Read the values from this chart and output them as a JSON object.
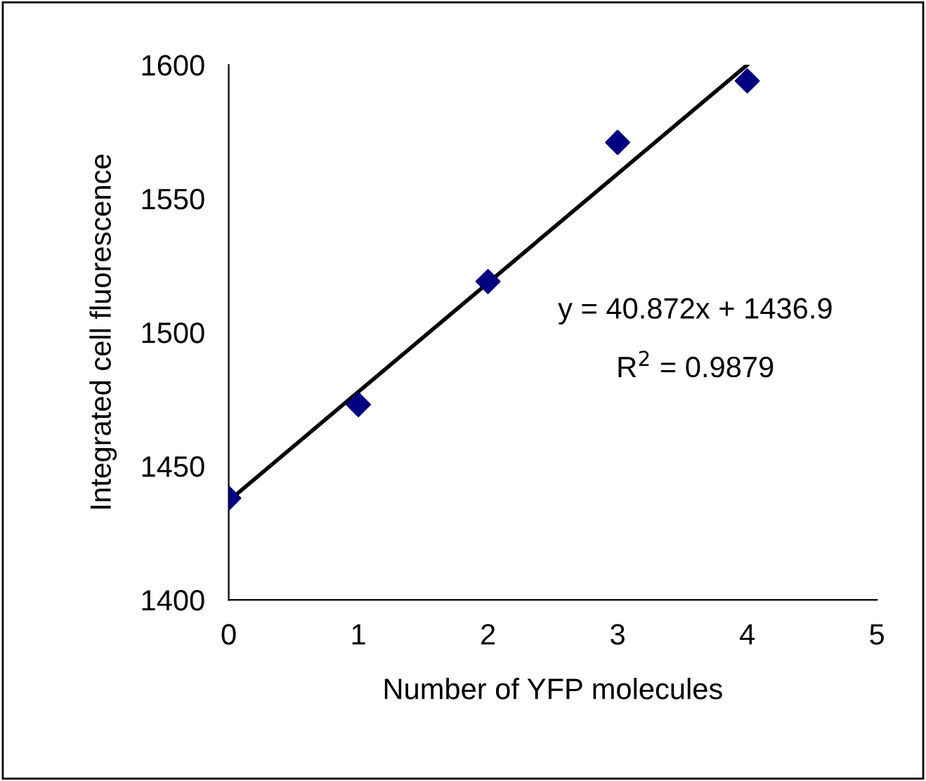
{
  "chart_data": {
    "type": "scatter",
    "xlabel": "Number of YFP molecules",
    "ylabel": "Integrated cell fluorescence",
    "x": [
      0,
      1,
      2,
      3,
      4
    ],
    "series": [
      {
        "color": "#000080",
        "marker": "diamond",
        "values": [
          1438,
          1473,
          1519,
          1571,
          1594
        ]
      },
      {
        "type": "line",
        "color": "#000000",
        "marker": "none",
        "line_style": "solid",
        "x": [
          0,
          4
        ],
        "values": [
          1437,
          1600
        ]
      }
    ],
    "xlim": [
      0,
      5
    ],
    "xticks": [
      0,
      1,
      2,
      3,
      4,
      5
    ],
    "ylim": [
      1400,
      1600
    ],
    "yticks": [
      1400,
      1450,
      1500,
      1550,
      1600
    ],
    "grid": false,
    "legend": false,
    "annotations": [
      "y = 40.872x + 1436.9",
      "R$^{2}$ = 0.9879"
    ]
  }
}
